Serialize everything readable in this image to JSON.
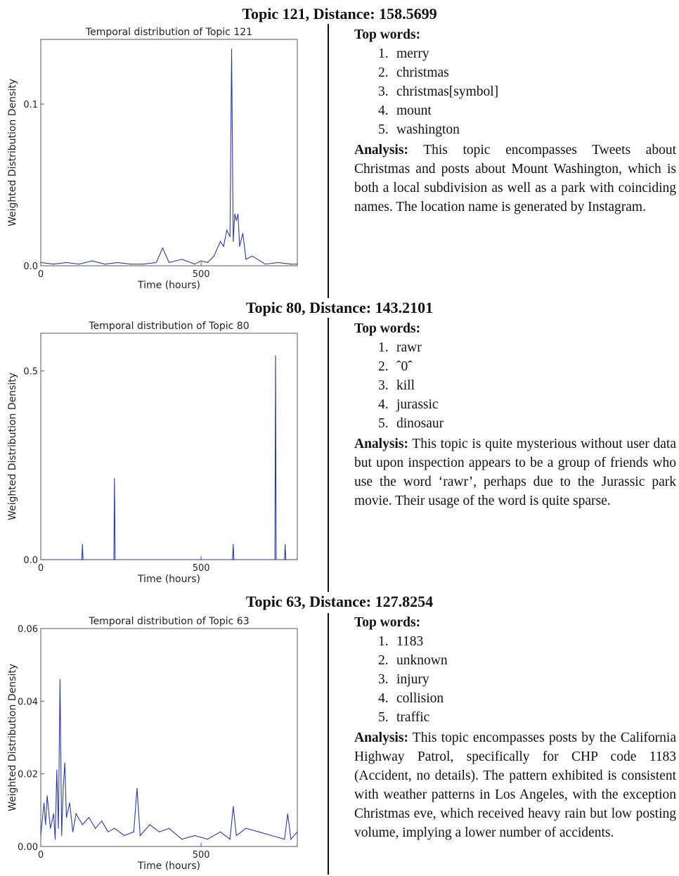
{
  "sections": [
    {
      "title": "Topic 121, Distance: 158.5699",
      "top_words_label": "Top words:",
      "words": [
        {
          "n": "1.",
          "w": "merry"
        },
        {
          "n": "2.",
          "w": "christmas"
        },
        {
          "n": "3.",
          "w": "christmas[symbol]"
        },
        {
          "n": "4.",
          "w": "mount"
        },
        {
          "n": "5.",
          "w": "washington"
        }
      ],
      "analysis_label": "Analysis:",
      "analysis_text": "This topic encompasses Tweets about Christmas  and posts about Mount Washington, which is both a local subdivision as well as a park with coinciding names. The location name is generated by Instagram."
    },
    {
      "title": "Topic 80, Distance: 143.2101",
      "top_words_label": "Top words:",
      "words": [
        {
          "n": "1.",
          "w": "rawr"
        },
        {
          "n": "2.",
          "w": "ˆ0ˆ"
        },
        {
          "n": "3.",
          "w": "kill"
        },
        {
          "n": "4.",
          "w": "jurassic"
        },
        {
          "n": "5.",
          "w": "dinosaur"
        }
      ],
      "analysis_label": "Analysis:",
      "analysis_text": "This topic is quite mysterious without user data  but upon inspection appears to be a group of friends who use the word ‘rawr’, perhaps due to the Jurassic park movie. Their usage of the word is quite sparse."
    },
    {
      "title": "Topic 63, Distance: 127.8254",
      "top_words_label": "Top words:",
      "words": [
        {
          "n": "1.",
          "w": "1183"
        },
        {
          "n": "2.",
          "w": "unknown"
        },
        {
          "n": "3.",
          "w": "injury"
        },
        {
          "n": "4.",
          "w": "collision"
        },
        {
          "n": "5.",
          "w": "traffic"
        }
      ],
      "analysis_label": "Analysis:",
      "analysis_text": "This topic encompasses posts by the California Highway Patrol, specifically for CHP code 1183 (Accident, no details).  The pattern exhibited is consistent with weather patterns in Los Angeles, with the exception Christmas eve, which received heavy rain but low posting volume, implying a lower number of accidents."
    }
  ],
  "chart_data": [
    {
      "type": "line",
      "title": "Temporal distribution of Topic 121",
      "xlabel": "Time (hours)",
      "ylabel": "Weighted Distribution Density",
      "xlim": [
        0,
        800
      ],
      "ylim": [
        0,
        0.14
      ],
      "xticks": [
        {
          "v": 0,
          "label": "0"
        },
        {
          "v": 500,
          "label": "500"
        }
      ],
      "yticks": [
        {
          "v": 0,
          "label": "0.0"
        },
        {
          "v": 0.1,
          "label": "0.1"
        }
      ],
      "line_color": "#2a3d9c",
      "x": [
        0,
        40,
        80,
        120,
        160,
        200,
        240,
        280,
        320,
        360,
        380,
        400,
        440,
        480,
        500,
        520,
        540,
        560,
        570,
        580,
        590,
        595,
        600,
        605,
        610,
        615,
        620,
        630,
        640,
        660,
        700,
        740,
        780,
        800
      ],
      "values": [
        0.002,
        0.001,
        0.002,
        0.001,
        0.003,
        0.001,
        0.002,
        0.001,
        0.001,
        0.002,
        0.011,
        0.002,
        0.004,
        0.001,
        0.003,
        0.002,
        0.006,
        0.015,
        0.012,
        0.022,
        0.018,
        0.134,
        0.015,
        0.032,
        0.028,
        0.032,
        0.012,
        0.02,
        0.004,
        0.006,
        0.001,
        0.002,
        0.001,
        0.001
      ]
    },
    {
      "type": "line",
      "title": "Temporal distribution of Topic 80",
      "xlabel": "Time (hours)",
      "ylabel": "Weighted Distribution Density",
      "xlim": [
        0,
        800
      ],
      "ylim": [
        0,
        0.6
      ],
      "xticks": [
        {
          "v": 0,
          "label": "0"
        },
        {
          "v": 500,
          "label": "500"
        }
      ],
      "yticks": [
        {
          "v": 0,
          "label": "0.0"
        },
        {
          "v": 0.5,
          "label": "0.5"
        }
      ],
      "line_color": "#2a3d9c",
      "x": [
        0,
        128,
        130,
        132,
        228,
        230,
        232,
        598,
        600,
        602,
        730,
        732,
        734,
        760,
        762,
        764,
        800
      ],
      "values": [
        0,
        0,
        0.04,
        0,
        0,
        0.215,
        0,
        0,
        0.04,
        0,
        0,
        0.54,
        0,
        0,
        0.04,
        0,
        0
      ]
    },
    {
      "type": "line",
      "title": "Temporal distribution of Topic 63",
      "xlabel": "Time (hours)",
      "ylabel": "Weighted Distribution Density",
      "xlim": [
        0,
        800
      ],
      "ylim": [
        0,
        0.06
      ],
      "xticks": [
        {
          "v": 0,
          "label": "0"
        },
        {
          "v": 500,
          "label": "500"
        }
      ],
      "yticks": [
        {
          "v": 0,
          "label": "0.00"
        },
        {
          "v": 0.02,
          "label": "0.02"
        },
        {
          "v": 0.04,
          "label": "0.04"
        },
        {
          "v": 0.06,
          "label": "0.06"
        }
      ],
      "line_color": "#2a3d9c",
      "x": [
        0,
        10,
        15,
        20,
        30,
        40,
        45,
        50,
        55,
        60,
        65,
        70,
        75,
        80,
        90,
        100,
        110,
        130,
        150,
        170,
        190,
        210,
        230,
        260,
        290,
        300,
        310,
        340,
        370,
        400,
        440,
        480,
        520,
        560,
        590,
        600,
        610,
        640,
        680,
        720,
        760,
        770,
        780,
        800
      ],
      "values": [
        0.003,
        0.012,
        0.006,
        0.014,
        0.005,
        0.009,
        0.002,
        0.021,
        0.005,
        0.046,
        0.003,
        0.016,
        0.023,
        0.008,
        0.012,
        0.004,
        0.009,
        0.006,
        0.008,
        0.005,
        0.007,
        0.004,
        0.005,
        0.003,
        0.004,
        0.016,
        0.003,
        0.006,
        0.004,
        0.005,
        0.002,
        0.003,
        0.002,
        0.004,
        0.002,
        0.011,
        0.003,
        0.005,
        0.004,
        0.003,
        0.002,
        0.009,
        0.002,
        0.004
      ]
    }
  ]
}
